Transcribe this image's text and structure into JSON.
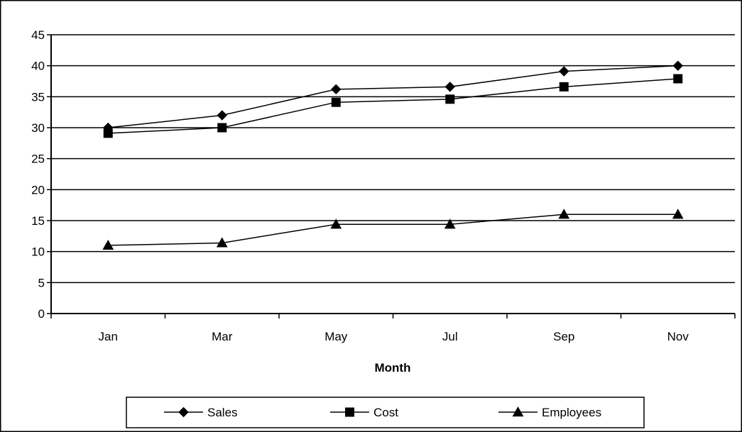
{
  "chart_data": {
    "type": "line",
    "title": "",
    "xlabel": "Month",
    "ylabel": "",
    "categories": [
      "Jan",
      "Mar",
      "May",
      "Jul",
      "Sep",
      "Nov"
    ],
    "ylim": [
      0,
      45
    ],
    "yticks": [
      0,
      5,
      10,
      15,
      20,
      25,
      30,
      35,
      40,
      45
    ],
    "grid": true,
    "legend_position": "bottom",
    "series": [
      {
        "name": "Sales",
        "marker": "diamond",
        "values": [
          30,
          32,
          36.2,
          36.6,
          39.1,
          40
        ]
      },
      {
        "name": "Cost",
        "marker": "square",
        "values": [
          29.1,
          30,
          34.1,
          34.6,
          36.6,
          37.9
        ]
      },
      {
        "name": "Employees",
        "marker": "triangle",
        "values": [
          11,
          11.4,
          14.4,
          14.4,
          16,
          16
        ]
      }
    ]
  }
}
